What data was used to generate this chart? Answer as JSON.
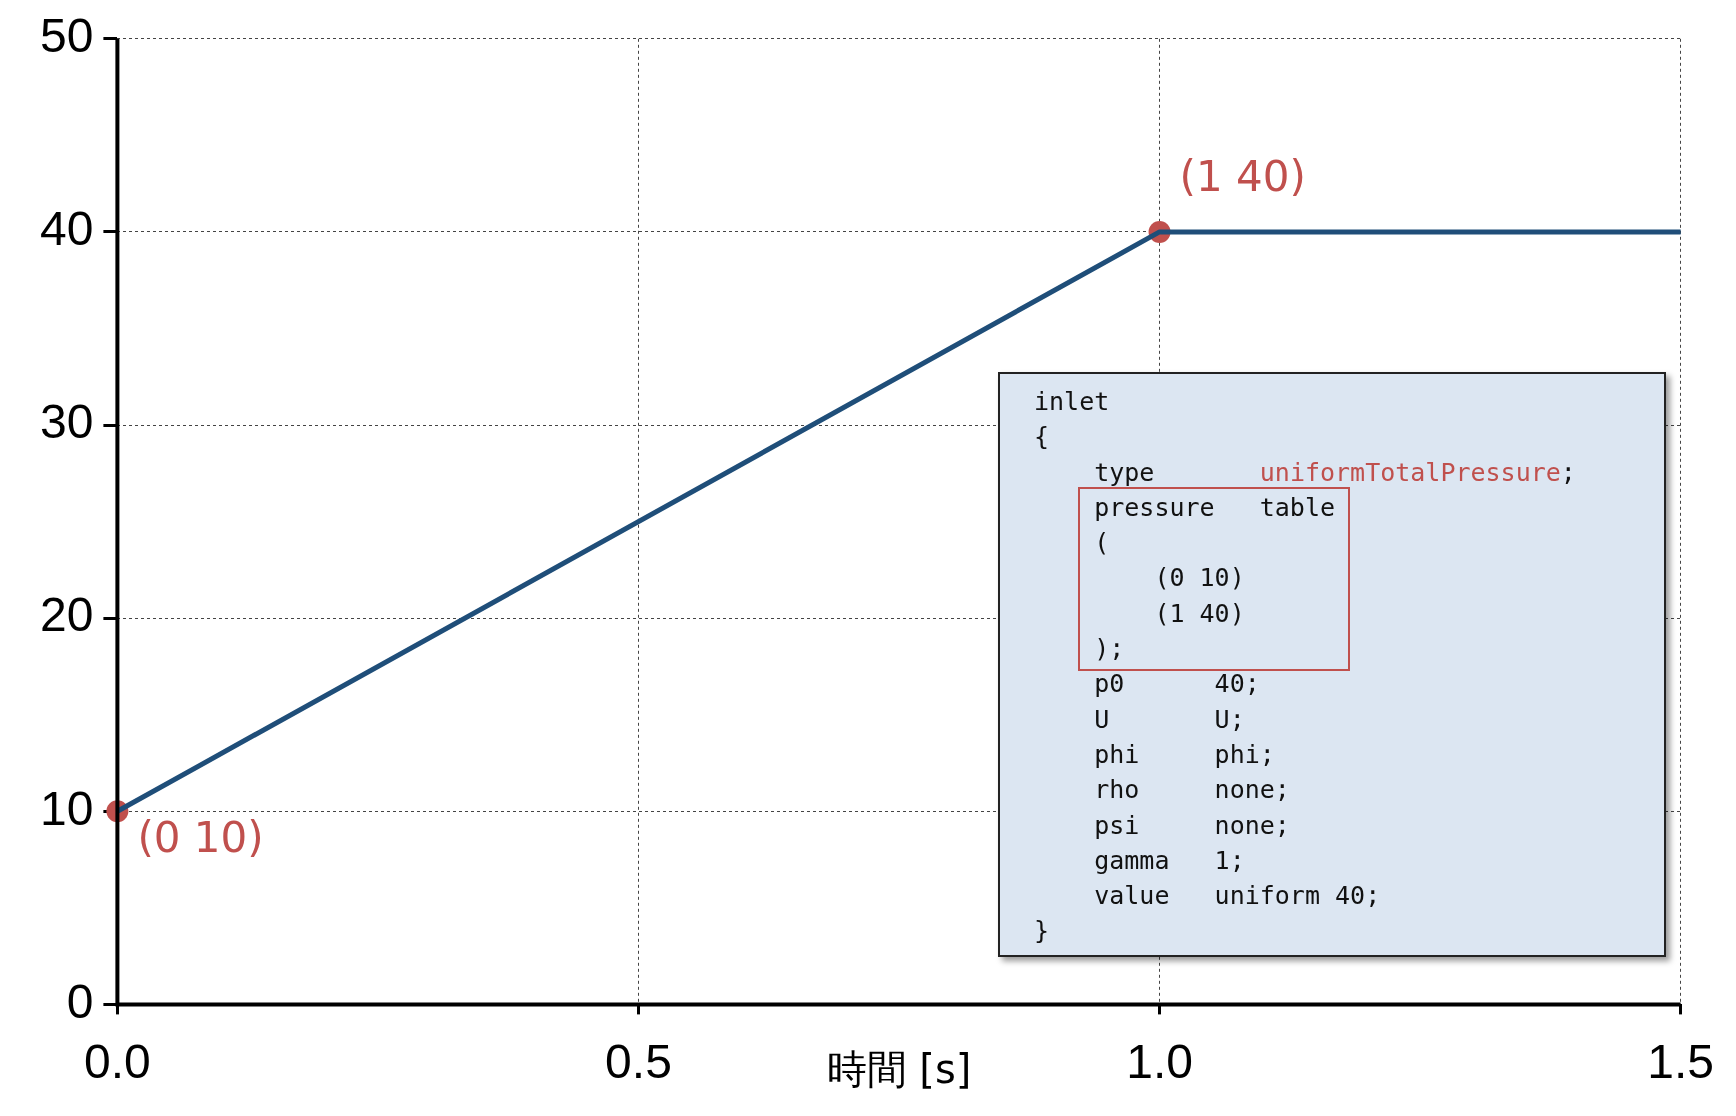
{
  "chart_data": {
    "type": "line",
    "xlabel": "時間 [s]",
    "xlim": [
      0,
      1.5
    ],
    "xticks": [
      {
        "value": 0,
        "label": "0.0"
      },
      {
        "value": 0.5,
        "label": "0.5"
      },
      {
        "value": 1,
        "label": "1.0"
      },
      {
        "value": 1.5,
        "label": "1.5"
      }
    ],
    "ylim": [
      0,
      50
    ],
    "yticks": [
      0,
      10,
      20,
      30,
      40,
      50
    ],
    "grid": true,
    "series": [
      {
        "color": "#1f4e79",
        "x": [
          0,
          1,
          1.5
        ],
        "values": [
          10,
          40,
          40
        ],
        "marker": "none"
      },
      {
        "type": "scatter",
        "color": "#c0504d",
        "x": [
          0,
          1
        ],
        "values": [
          10,
          40
        ],
        "marker": "circle"
      }
    ],
    "annotations": [
      {
        "text": "(0 10)",
        "x": 0,
        "y": 10
      },
      {
        "text": "(1 40)",
        "x": 1,
        "y": 40
      },
      "inlet\n{\n    type       uniformTotalPressure;\n    pressure   table\n    (\n        (0 10)\n        (1 40)\n    );\n    p0      40;\n    U       U;\n    phi     phi;\n    rho     none;\n    psi     none;\n    gamma   1;\n    value   uniform 40;\n}"
    ]
  }
}
